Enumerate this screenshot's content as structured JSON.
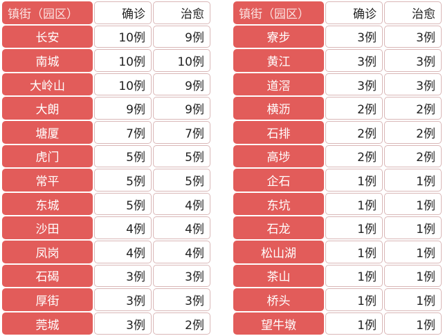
{
  "colors": {
    "accent": "#e25c5a"
  },
  "tables": [
    {
      "headers": [
        "镇街（园区）",
        "确诊",
        "治愈"
      ],
      "rows": [
        [
          "长安",
          "10例",
          "9例"
        ],
        [
          "南城",
          "10例",
          "10例"
        ],
        [
          "大岭山",
          "10例",
          "9例"
        ],
        [
          "大朗",
          "9例",
          "9例"
        ],
        [
          "塘厦",
          "7例",
          "7例"
        ],
        [
          "虎门",
          "5例",
          "5例"
        ],
        [
          "常平",
          "5例",
          "5例"
        ],
        [
          "东城",
          "5例",
          "4例"
        ],
        [
          "沙田",
          "4例",
          "4例"
        ],
        [
          "凤岗",
          "4例",
          "4例"
        ],
        [
          "石碣",
          "3例",
          "3例"
        ],
        [
          "厚街",
          "3例",
          "3例"
        ],
        [
          "莞城",
          "3例",
          "2例"
        ]
      ]
    },
    {
      "headers": [
        "镇街（园区）",
        "确诊",
        "治愈"
      ],
      "rows": [
        [
          "寮步",
          "3例",
          "3例"
        ],
        [
          "黄江",
          "3例",
          "3例"
        ],
        [
          "道滘",
          "3例",
          "3例"
        ],
        [
          "横沥",
          "2例",
          "2例"
        ],
        [
          "石排",
          "2例",
          "2例"
        ],
        [
          "高埗",
          "2例",
          "2例"
        ],
        [
          "企石",
          "1例",
          "1例"
        ],
        [
          "东坑",
          "1例",
          "1例"
        ],
        [
          "石龙",
          "1例",
          "1例"
        ],
        [
          "松山湖",
          "1例",
          "1例"
        ],
        [
          "茶山",
          "1例",
          "1例"
        ],
        [
          "桥头",
          "1例",
          "1例"
        ],
        [
          "望牛墩",
          "1例",
          "1例"
        ]
      ]
    }
  ]
}
